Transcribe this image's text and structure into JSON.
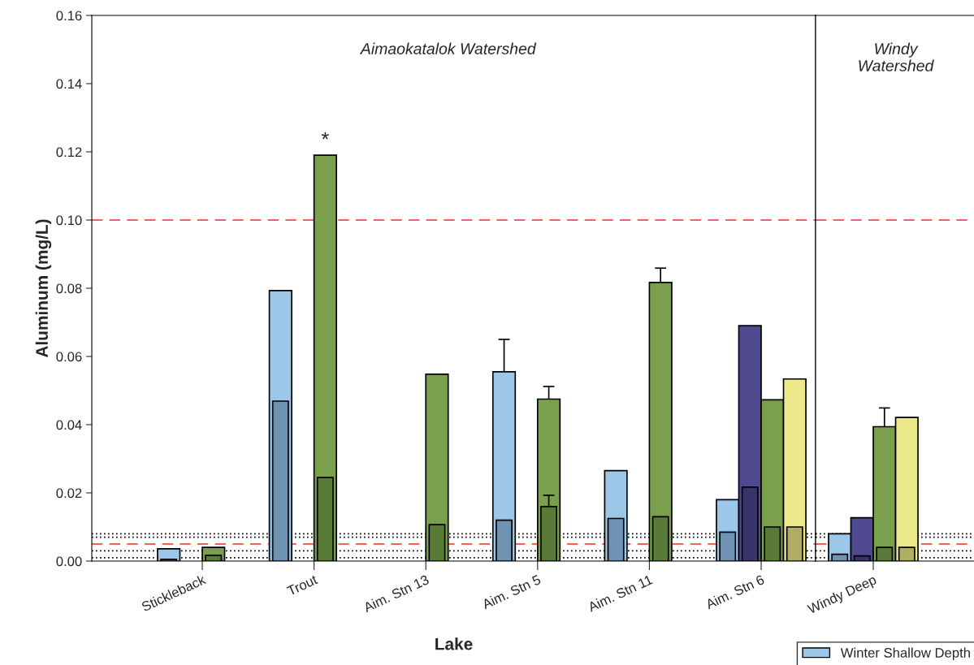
{
  "chart_data": [
    {
      "type": "bar",
      "xlabel": "Lake",
      "ylabel": "Aluminum (mg/L)",
      "categories": [
        "Stickleback",
        "Trout",
        "Aim. Stn 13",
        "Aim. Stn 5",
        "Aim. Stn 11",
        "Aim. Stn 6"
      ],
      "series": [
        {
          "name": "Winter Shallow Depth",
          "color": "#9dc7e9",
          "values": [
            0.0036,
            0.0793,
            null,
            0.0555,
            0.0265,
            0.018
          ],
          "errors": [
            null,
            null,
            null,
            [
              0.0555,
              0.065
            ],
            null,
            null
          ]
        },
        {
          "color": "#6f93b3",
          "values": [
            0.0005,
            0.0469,
            null,
            0.012,
            0.0125,
            0.0085
          ]
        },
        {
          "color": "#4f4a8f",
          "values": [
            null,
            null,
            null,
            null,
            null,
            0.069
          ]
        },
        {
          "color": "#39356a",
          "values": [
            null,
            null,
            null,
            null,
            null,
            0.0217
          ]
        },
        {
          "color": "#7aa04e",
          "values": [
            0.004,
            0.119,
            0.0548,
            0.0475,
            0.0817,
            0.0473
          ],
          "errors": [
            null,
            null,
            null,
            [
              0.0475,
              0.0512
            ],
            [
              0.0817,
              0.0859
            ],
            null
          ]
        },
        {
          "color": "#5a7a38",
          "values": [
            0.0017,
            0.0245,
            0.0107,
            0.016,
            0.013,
            0.01
          ],
          "errors": [
            null,
            null,
            null,
            [
              0.016,
              0.0193
            ],
            null,
            null
          ]
        },
        {
          "color": "#ebe98c",
          "values": [
            null,
            null,
            null,
            null,
            null,
            0.0534
          ]
        },
        {
          "color": "#b0ae66",
          "values": [
            null,
            null,
            null,
            null,
            null,
            0.01
          ]
        }
      ],
      "ylim": [
        0,
        0.16
      ],
      "yticks": [
        {
          "value": 0,
          "label": "0.00"
        },
        {
          "value": 0.02,
          "label": "0.02"
        },
        {
          "value": 0.04,
          "label": "0.04"
        },
        {
          "value": 0.06,
          "label": "0.06"
        },
        {
          "value": 0.08,
          "label": "0.08"
        },
        {
          "value": 0.1,
          "label": "0.10"
        },
        {
          "value": 0.12,
          "label": "0.12"
        },
        {
          "value": 0.14,
          "label": "0.14"
        },
        {
          "value": 0.16,
          "label": "0.16"
        }
      ],
      "ref_lines": [
        {
          "axis": "y",
          "value": 0.1,
          "color": "#e8302a",
          "line_style": "dashed"
        },
        {
          "axis": "y",
          "value": 0.005,
          "color": "#e8302a",
          "line_style": "dashed"
        },
        {
          "axis": "y",
          "value": 0.008,
          "color": "#000000",
          "line_style": "dotted"
        },
        {
          "axis": "y",
          "value": 0.007,
          "color": "#000000",
          "line_style": "dotted"
        },
        {
          "axis": "y",
          "value": 0.003,
          "color": "#000000",
          "line_style": "dotted"
        },
        {
          "axis": "y",
          "value": 0.001,
          "color": "#000000",
          "line_style": "dotted"
        }
      ],
      "annotations": [
        "Aimaokatalok Watershed",
        "*"
      ],
      "grid": false,
      "legend": "bottom right"
    },
    {
      "type": "bar",
      "categories": [
        "Windy Deep"
      ],
      "series": [
        {
          "color": "#9dc7e9",
          "values": [
            0.008
          ]
        },
        {
          "color": "#6f93b3",
          "values": [
            0.002
          ]
        },
        {
          "color": "#4f4a8f",
          "values": [
            0.0127
          ]
        },
        {
          "color": "#39356a",
          "values": [
            0.0015
          ]
        },
        {
          "color": "#7aa04e",
          "values": [
            0.0394
          ],
          "errors": [
            [
              0.0394,
              0.0449
            ]
          ]
        },
        {
          "color": "#5a7a38",
          "values": [
            0.004
          ]
        },
        {
          "color": "#ebe98c",
          "values": [
            0.0421
          ]
        },
        {
          "color": "#b0ae66",
          "values": [
            0.004
          ]
        }
      ],
      "ylim": [
        0,
        0.16
      ],
      "tick_labels": "x",
      "ref_lines": [
        {
          "axis": "y",
          "value": 0.1,
          "color": "#e8302a",
          "line_style": "dashed"
        },
        {
          "axis": "y",
          "value": 0.005,
          "color": "#e8302a",
          "line_style": "dashed"
        },
        {
          "axis": "y",
          "value": 0.008,
          "color": "#000000",
          "line_style": "dotted"
        },
        {
          "axis": "y",
          "value": 0.007,
          "color": "#000000",
          "line_style": "dotted"
        },
        {
          "axis": "y",
          "value": 0.003,
          "color": "#000000",
          "line_style": "dotted"
        },
        {
          "axis": "y",
          "value": 0.001,
          "color": "#000000",
          "line_style": "dotted"
        }
      ],
      "annotations": [
        "Windy\nWatershed"
      ],
      "grid": false
    }
  ]
}
